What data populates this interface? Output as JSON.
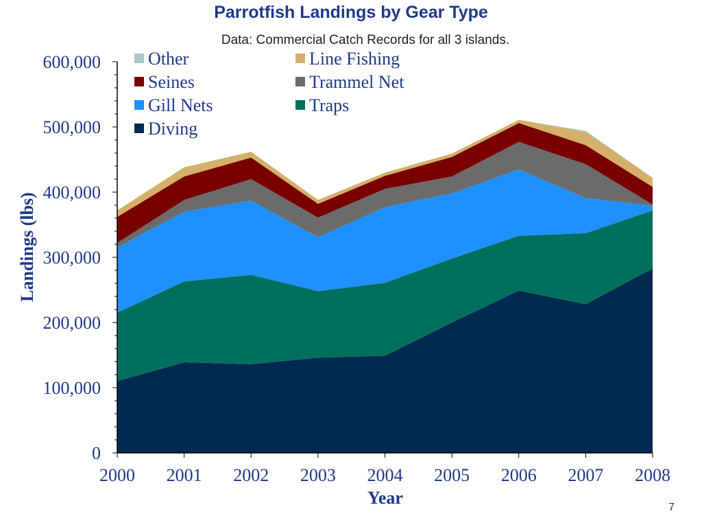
{
  "page": {
    "number": "7"
  },
  "chart_data": {
    "type": "area",
    "stacked": true,
    "title": "Parrotfish Landings by Gear Type",
    "subtitle": "Data: Commercial Catch Records for all 3 islands.",
    "xlabel": "Year",
    "ylabel": "Landings (lbs)",
    "ylim": [
      0,
      600000
    ],
    "y_ticks": [
      "0",
      "100,000",
      "200,000",
      "300,000",
      "400,000",
      "500,000",
      "600,000"
    ],
    "y_tick_values": [
      0,
      100000,
      200000,
      300000,
      400000,
      500000,
      600000
    ],
    "x": [
      "2000",
      "2001",
      "2002",
      "2003",
      "2004",
      "2005",
      "2006",
      "2007",
      "2008"
    ],
    "series": [
      {
        "name": "Diving",
        "color": "#002a50",
        "values": [
          110000,
          139000,
          136000,
          146000,
          149000,
          200000,
          249000,
          228000,
          283000
        ]
      },
      {
        "name": "Traps",
        "color": "#006f5c",
        "values": [
          105000,
          124000,
          137000,
          102000,
          112000,
          98000,
          84000,
          109000,
          89000
        ]
      },
      {
        "name": "Gill Nets",
        "color": "#1e90ff",
        "values": [
          100000,
          107000,
          114000,
          83000,
          116000,
          100000,
          102000,
          54000,
          7000
        ]
      },
      {
        "name": "Trammel Net",
        "color": "#6b6b6b",
        "values": [
          7000,
          18000,
          33000,
          30000,
          28000,
          26000,
          42000,
          52000,
          2000
        ]
      },
      {
        "name": "Seines",
        "color": "#7a0000",
        "values": [
          40000,
          36000,
          33000,
          21000,
          20000,
          30000,
          29000,
          29000,
          27000
        ]
      },
      {
        "name": "Line Fishing",
        "color": "#d4b06a",
        "values": [
          10000,
          14000,
          9000,
          6000,
          5000,
          5000,
          5000,
          20000,
          14000
        ]
      },
      {
        "name": "Other",
        "color": "#a8c8c8",
        "values": [
          0,
          0,
          0,
          0,
          0,
          0,
          0,
          2000,
          0
        ]
      }
    ],
    "legend": [
      {
        "name": "Other",
        "color": "#a8c8c8"
      },
      {
        "name": "Line Fishing",
        "color": "#d4b06a"
      },
      {
        "name": "Seines",
        "color": "#7a0000"
      },
      {
        "name": "Trammel Net",
        "color": "#6b6b6b"
      },
      {
        "name": "Gill Nets",
        "color": "#1e90ff"
      },
      {
        "name": "Traps",
        "color": "#006f5c"
      },
      {
        "name": "Diving",
        "color": "#002a50"
      }
    ]
  }
}
